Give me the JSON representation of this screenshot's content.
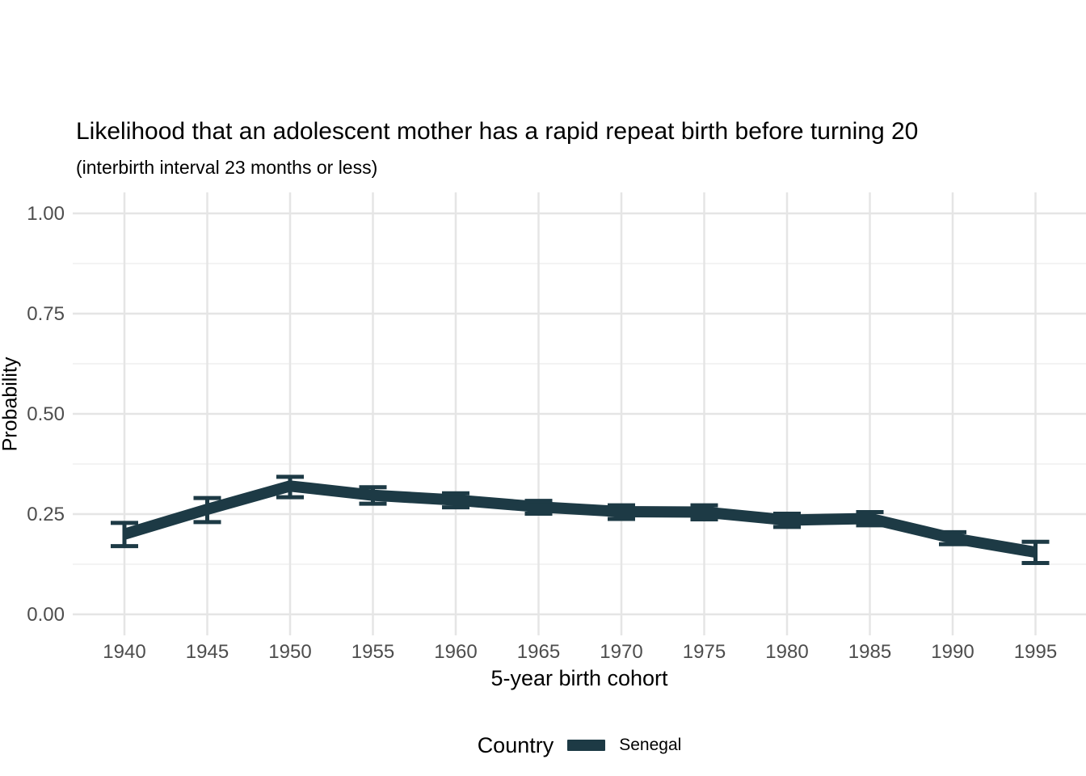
{
  "header": {
    "title": "Likelihood that an adolescent mother has a rapid repeat birth before turning 20",
    "subtitle": "(interbirth interval 23 months or less)"
  },
  "chart_data": {
    "type": "line",
    "title": "Likelihood that an adolescent mother has a rapid repeat birth before turning 20",
    "subtitle": "(interbirth interval 23 months or less)",
    "xlabel": "5-year birth cohort",
    "ylabel": "Probability",
    "x": [
      1940,
      1945,
      1950,
      1955,
      1960,
      1965,
      1970,
      1975,
      1980,
      1985,
      1990,
      1995
    ],
    "x_tick_labels": [
      "1940",
      "1945",
      "1950",
      "1955",
      "1960",
      "1965",
      "1970",
      "1975",
      "1980",
      "1985",
      "1990",
      "1995"
    ],
    "series": [
      {
        "name": "Senegal",
        "color": "#1d3a45",
        "values": [
          0.2,
          0.262,
          0.32,
          0.297,
          0.285,
          0.268,
          0.256,
          0.255,
          0.235,
          0.239,
          0.19,
          0.155
        ],
        "ci_low": [
          0.17,
          0.23,
          0.292,
          0.276,
          0.267,
          0.251,
          0.238,
          0.237,
          0.218,
          0.222,
          0.175,
          0.128
        ],
        "ci_high": [
          0.228,
          0.29,
          0.343,
          0.317,
          0.302,
          0.283,
          0.272,
          0.272,
          0.251,
          0.255,
          0.205,
          0.181
        ]
      }
    ],
    "ylim": [
      0,
      1
    ],
    "y_major_ticks": [
      0,
      0.25,
      0.5,
      0.75,
      1.0
    ],
    "y_tick_labels": [
      "0.00",
      "0.25",
      "0.50",
      "0.75",
      "1.00"
    ],
    "y_minor_ticks": [
      0.125,
      0.375,
      0.625,
      0.875
    ],
    "grid": "horizontal major+minor, vertical major only",
    "legend": {
      "position": "bottom",
      "title": "Country",
      "entries": [
        "Senegal"
      ]
    }
  },
  "colors": {
    "line": "#1d3a45",
    "grid_major": "#e5e5e5",
    "grid_minor": "#efefef",
    "tick_text": "#4d4d4d",
    "title_text": "#000000",
    "background": "#ffffff"
  }
}
